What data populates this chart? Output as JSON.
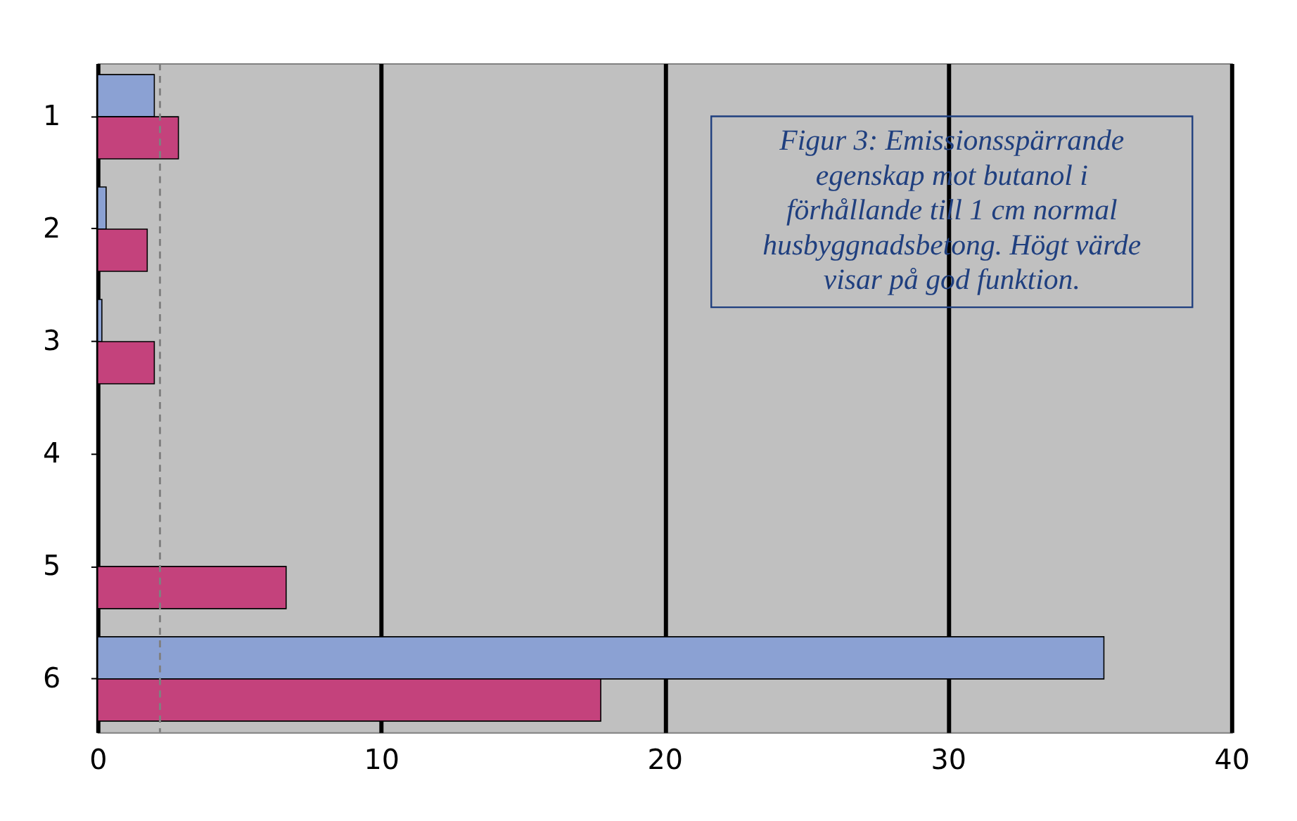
{
  "chart_data": {
    "type": "bar",
    "orientation": "horizontal",
    "categories": [
      "1",
      "2",
      "3",
      "4",
      "5",
      "6"
    ],
    "series": [
      {
        "color": "#8ba1d3",
        "values": [
          2.0,
          0.3,
          0.15,
          null,
          null,
          35.5
        ]
      },
      {
        "color": "#c4427c",
        "values": [
          2.85,
          1.75,
          2.0,
          null,
          6.65,
          17.75
        ]
      }
    ],
    "xlim": [
      0,
      40
    ],
    "xticks": [
      0,
      10,
      20,
      30,
      40
    ],
    "grid": "x",
    "ref_lines": [
      {
        "axis": "x",
        "value": 2.2,
        "color": "#808080",
        "line_style": "dashed"
      }
    ],
    "annotations": [
      "Figur 3: Emissionsspärrande egenskap mot butanol i förhållande till 1 cm normal husbyggnadsbetong. Högt värde visar på god funktion."
    ]
  }
}
